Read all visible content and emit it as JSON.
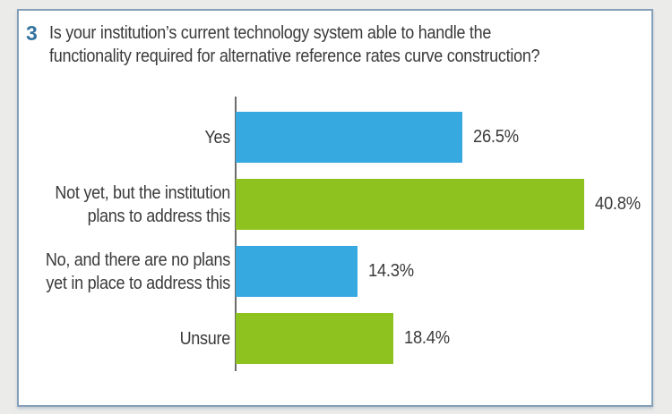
{
  "page": {
    "background_color": "#ebebe9"
  },
  "card": {
    "background_color": "#ffffff",
    "border_color": "#85a0ba"
  },
  "header": {
    "number": "3",
    "number_color": "#35749f",
    "question_lines": [
      "Is your institution’s current technology system able to handle the",
      "functionality required for alternative reference rates curve construction?"
    ]
  },
  "chart_data": {
    "type": "bar",
    "orientation": "horizontal",
    "question_number": "3",
    "title": "Is your institution’s current technology system able to handle the functionality required for alternative reference rates curve construction?",
    "categories": [
      "Yes",
      "Not yet, but the institution plans to address this",
      "No, and there are no plans yet in place to address this",
      "Unsure"
    ],
    "category_label_lines": [
      [
        "Yes"
      ],
      [
        "Not yet, but the institution",
        "plans to address this"
      ],
      [
        "No, and there are no plans",
        "yet in place to address this"
      ],
      [
        "Unsure"
      ]
    ],
    "values": [
      26.5,
      40.8,
      14.3,
      18.4
    ],
    "value_labels": [
      "26.5%",
      "40.8%",
      "14.3%",
      "18.4%"
    ],
    "bar_colors": [
      "#36a9e1",
      "#8dc21f",
      "#36a9e1",
      "#8dc21f"
    ],
    "xlim": [
      0,
      48
    ],
    "grid": false,
    "legend": false,
    "axis_line_color": "#6b6b6b",
    "text_color": "#3a3a3a"
  }
}
